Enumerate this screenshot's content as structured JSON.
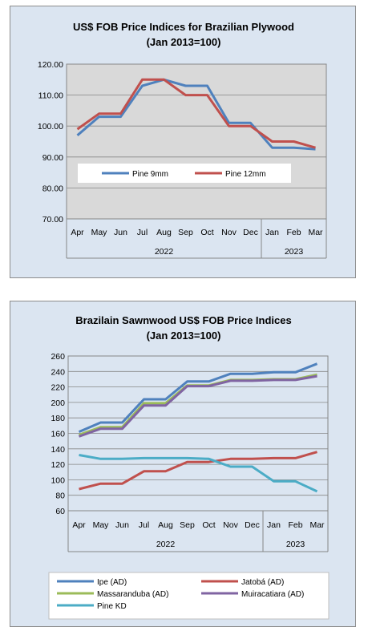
{
  "chart_data": [
    {
      "type": "line",
      "title": "US$ FOB Price Indices for Brazilian  Plywood",
      "subtitle": "(Jan 2013=100)",
      "x": [
        "Apr",
        "May",
        "Jun",
        "Jul",
        "Aug",
        "Sep",
        "Oct",
        "Nov",
        "Dec",
        "Jan",
        "Feb",
        "Mar"
      ],
      "year_labels": [
        "2022",
        "2023"
      ],
      "ylim": [
        70,
        120
      ],
      "yticks": [
        "70.00",
        "80.00",
        "90.00",
        "100.00",
        "110.00",
        "120.00"
      ],
      "grid": true,
      "legend_position": "inside-lower",
      "series": [
        {
          "name": "Pine 9mm",
          "color": "#4f81bd",
          "values": [
            97,
            103,
            103,
            113,
            115,
            113,
            113,
            101,
            101,
            93,
            93,
            92.5
          ]
        },
        {
          "name": "Pine 12mm",
          "color": "#c0504d",
          "values": [
            99,
            104,
            104,
            115,
            115,
            110,
            110,
            100,
            100,
            95,
            95,
            93
          ]
        }
      ]
    },
    {
      "type": "line",
      "title": "Brazilain Sawnwood US$ FOB Price Indices",
      "subtitle": "(Jan 2013=100)",
      "x": [
        "Apr",
        "May",
        "Jun",
        "Jul",
        "Aug",
        "Sep",
        "Oct",
        "Nov",
        "Dec",
        "Jan",
        "Feb",
        "Mar"
      ],
      "year_labels": [
        "2022",
        "2023"
      ],
      "ylim": [
        60,
        260
      ],
      "yticks": [
        "60",
        "80",
        "100",
        "120",
        "140",
        "160",
        "180",
        "200",
        "220",
        "240",
        "260"
      ],
      "grid": true,
      "legend_position": "bottom",
      "series": [
        {
          "name": "Ipe (AD)",
          "color": "#4f81bd",
          "values": [
            162,
            174,
            174,
            204,
            204,
            227,
            227,
            237,
            237,
            239,
            239,
            250
          ]
        },
        {
          "name": "Jatobá (AD)",
          "color": "#c0504d",
          "values": [
            88,
            95,
            95,
            111,
            111,
            123,
            123,
            127,
            127,
            128,
            128,
            136
          ]
        },
        {
          "name": "Massaranduba (AD)",
          "color": "#9bbb59",
          "values": [
            158,
            168,
            168,
            199,
            199,
            222,
            222,
            229,
            229,
            230,
            230,
            236
          ]
        },
        {
          "name": "Muiracatiara (AD)",
          "color": "#8064a2",
          "values": [
            156,
            166,
            166,
            196,
            196,
            221,
            221,
            228,
            228,
            229,
            229,
            234
          ]
        },
        {
          "name": "Pine KD",
          "color": "#4bacc6",
          "values": [
            132,
            127,
            127,
            128,
            128,
            128,
            127,
            117,
            117,
            98,
            98,
            85
          ]
        }
      ]
    }
  ]
}
